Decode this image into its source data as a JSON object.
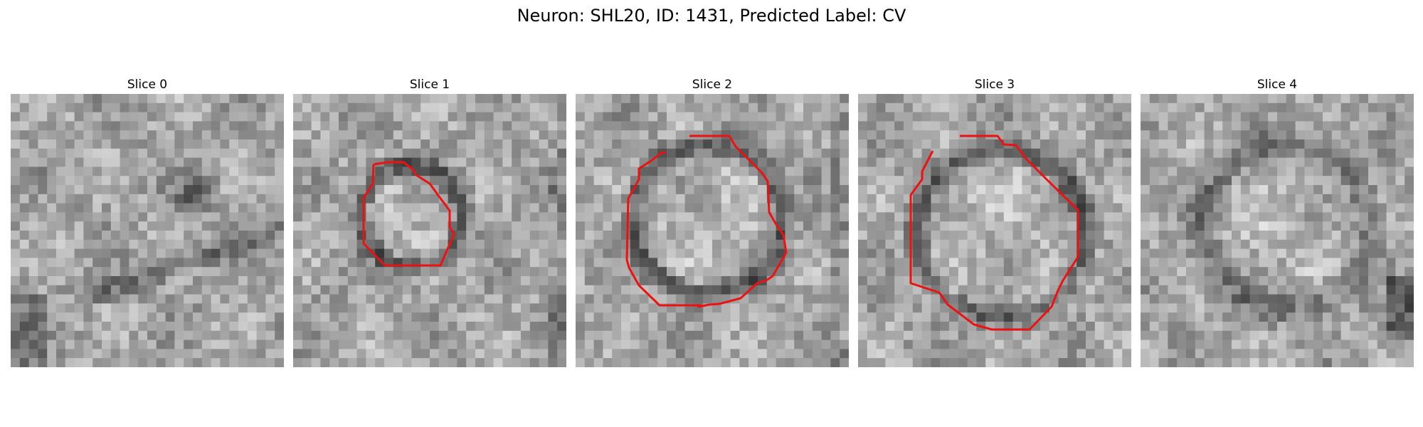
{
  "figure": {
    "title": "Neuron: SHL20, ID: 1431, Predicted Label: CV"
  },
  "panels": [
    {
      "title": "Slice 0",
      "has_contour": false
    },
    {
      "title": "Slice 1",
      "has_contour": true
    },
    {
      "title": "Slice 2",
      "has_contour": true
    },
    {
      "title": "Slice 3",
      "has_contour": true
    },
    {
      "title": "Slice 4",
      "has_contour": false
    }
  ],
  "colors": {
    "contour": "#ee1111",
    "background": "#ffffff"
  }
}
